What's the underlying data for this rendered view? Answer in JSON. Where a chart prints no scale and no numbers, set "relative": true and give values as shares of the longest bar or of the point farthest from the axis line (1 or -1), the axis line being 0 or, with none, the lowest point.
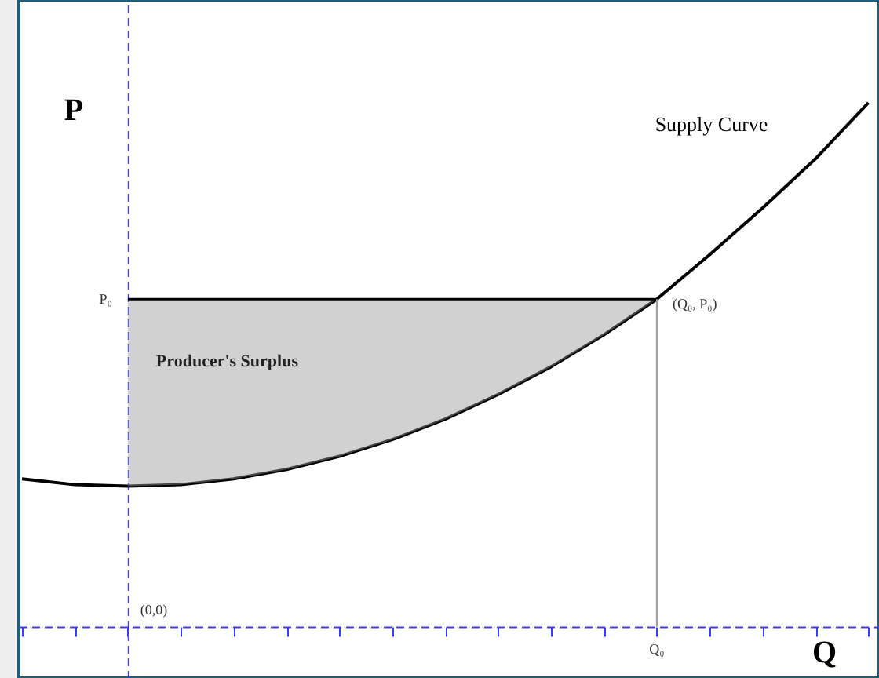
{
  "chart_data": {
    "type": "line",
    "xlabel": "Q",
    "ylabel": "P",
    "relative": true,
    "categories": [
      null,
      null,
      null,
      null,
      null,
      null,
      null,
      null,
      null,
      null,
      null,
      null,
      null,
      null,
      null,
      null,
      null
    ],
    "series": [
      {
        "name": "Supply Curve",
        "color": "#000000",
        "values": [
          0.282,
          0.271,
          0.268,
          0.271,
          0.282,
          0.3,
          0.325,
          0.357,
          0.396,
          0.443,
          0.496,
          0.557,
          0.625,
          0.71,
          0.799,
          0.893,
          1
        ],
        "lower": [
          null,
          null,
          0.268,
          0.271,
          0.282,
          0.3,
          0.325,
          0.357,
          0.396,
          0.443,
          0.496,
          0.557,
          0.625,
          null,
          null,
          null,
          null
        ],
        "upper": [
          null,
          null,
          0.625,
          0.625,
          0.625,
          0.625,
          0.625,
          0.625,
          0.625,
          0.625,
          0.625,
          0.625,
          0.625,
          null,
          null,
          null,
          null
        ]
      }
    ],
    "annotations": [
      "Producer's Surplus",
      "(Q₀, P₀)",
      "(0,0)",
      "P₀",
      "Q₀"
    ],
    "grid": false,
    "marker": "none",
    "line_style": "solid"
  }
}
